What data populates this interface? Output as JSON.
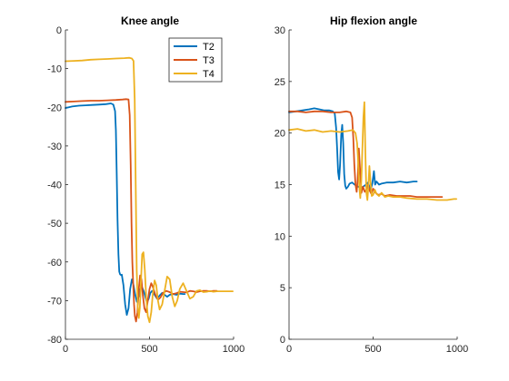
{
  "chart_data": [
    {
      "type": "line",
      "title": "Knee angle",
      "xlabel": "",
      "ylabel": "",
      "xlim": [
        0,
        1000
      ],
      "ylim": [
        -80,
        0
      ],
      "xticks": [
        0,
        500,
        1000
      ],
      "yticks": [
        -80,
        -70,
        -60,
        -50,
        -40,
        -30,
        -20,
        -10,
        0
      ],
      "grid": false,
      "legend": "top-right",
      "series": [
        {
          "name": "T2",
          "color": "#0072BD",
          "x": [
            0,
            40,
            80,
            120,
            160,
            200,
            240,
            270,
            285,
            295,
            300,
            305,
            310,
            315,
            320,
            325,
            330,
            335,
            345,
            355,
            365,
            375,
            385,
            395,
            405,
            415,
            425,
            435,
            445,
            455,
            465,
            475,
            485,
            495,
            505,
            515,
            530,
            545,
            560,
            575,
            590,
            605,
            620,
            640,
            660,
            680,
            700,
            710
          ],
          "y": [
            -20.2,
            -19.8,
            -19.6,
            -19.5,
            -19.4,
            -19.3,
            -19.2,
            -19.0,
            -19.3,
            -21,
            -26,
            -37,
            -49,
            -58,
            -62.5,
            -63.2,
            -63.4,
            -63.3,
            -66,
            -71,
            -73.7,
            -72,
            -67,
            -64.5,
            -66,
            -68.5,
            -70.3,
            -69,
            -67,
            -66.5,
            -67.5,
            -69,
            -70.5,
            -69.5,
            -68,
            -67.5,
            -68.5,
            -69.5,
            -68.7,
            -68,
            -68.5,
            -69,
            -68.5,
            -68.3,
            -68.5,
            -68.2,
            -68.3,
            -68.3
          ]
        },
        {
          "name": "T3",
          "color": "#D95319",
          "x": [
            0,
            50,
            100,
            150,
            200,
            250,
            300,
            340,
            360,
            375,
            382,
            388,
            393,
            398,
            403,
            408,
            413,
            420,
            428,
            436,
            444,
            452,
            460,
            470,
            480,
            490,
            500,
            510,
            520,
            535,
            550,
            565,
            580,
            600,
            620,
            640,
            660,
            680,
            700,
            720,
            740,
            760,
            780,
            800,
            820,
            840,
            860,
            880,
            900
          ],
          "y": [
            -18.6,
            -18.5,
            -18.4,
            -18.3,
            -18.3,
            -18.2,
            -18.1,
            -18.0,
            -17.9,
            -18.0,
            -22,
            -35,
            -50,
            -60,
            -66,
            -71,
            -74,
            -75.4,
            -73,
            -67,
            -63.5,
            -64.5,
            -68.5,
            -72,
            -73,
            -70,
            -67,
            -65.5,
            -66.5,
            -68.5,
            -69.8,
            -69.2,
            -68,
            -67.5,
            -67.8,
            -68.3,
            -68.1,
            -67.7,
            -67.8,
            -67.9,
            -67.5,
            -67.6,
            -67.8,
            -67.6,
            -67.5,
            -67.5,
            -67.6,
            -67.5,
            -67.5
          ]
        },
        {
          "name": "T4",
          "color": "#EDB120",
          "x": [
            0,
            50,
            100,
            150,
            200,
            250,
            300,
            350,
            380,
            395,
            405,
            412,
            418,
            424,
            430,
            436,
            442,
            448,
            456,
            464,
            472,
            480,
            490,
            500,
            510,
            520,
            530,
            540,
            550,
            560,
            575,
            590,
            605,
            620,
            635,
            650,
            665,
            680,
            700,
            720,
            740,
            760,
            780,
            800,
            820,
            840,
            860,
            880,
            900,
            920,
            940,
            960,
            980,
            995
          ],
          "y": [
            -8.1,
            -8.0,
            -7.9,
            -7.7,
            -7.6,
            -7.5,
            -7.4,
            -7.3,
            -7.2,
            -7.4,
            -8,
            -18,
            -40,
            -62,
            -71.5,
            -74.5,
            -72,
            -66,
            -58,
            -57.5,
            -62,
            -69,
            -74,
            -75.6,
            -73,
            -68,
            -64.8,
            -66,
            -70,
            -72.3,
            -71,
            -67.5,
            -63.8,
            -64.5,
            -69,
            -71.5,
            -70,
            -67,
            -65.5,
            -67.5,
            -69.5,
            -69,
            -67.5,
            -67.3,
            -67.8,
            -67.7,
            -67.5,
            -67.7,
            -67.6,
            -67.6,
            -67.6,
            -67.6,
            -67.6,
            -67.6
          ]
        }
      ]
    },
    {
      "type": "line",
      "title": "Hip flexion angle",
      "xlabel": "",
      "ylabel": "",
      "xlim": [
        0,
        1000
      ],
      "ylim": [
        0,
        30
      ],
      "xticks": [
        0,
        500,
        1000
      ],
      "yticks": [
        0,
        5,
        10,
        15,
        20,
        25,
        30
      ],
      "grid": false,
      "legend": "none",
      "series": [
        {
          "name": "T2",
          "color": "#0072BD",
          "x": [
            0,
            40,
            80,
            120,
            150,
            180,
            210,
            240,
            260,
            272,
            280,
            286,
            292,
            298,
            304,
            310,
            316,
            322,
            328,
            334,
            340,
            350,
            360,
            375,
            390,
            410,
            430,
            450,
            470,
            485,
            495,
            505,
            512,
            520,
            535,
            550,
            580,
            620,
            660,
            700,
            740,
            760
          ],
          "y": [
            22.0,
            22.1,
            22.2,
            22.3,
            22.4,
            22.3,
            22.2,
            22.2,
            22.1,
            21.9,
            20.5,
            18.5,
            16.2,
            15.5,
            17.0,
            19.8,
            20.8,
            19.0,
            16.0,
            14.9,
            14.6,
            14.8,
            15.1,
            15.2,
            15.0,
            14.8,
            14.7,
            14.9,
            15.2,
            14.5,
            15.1,
            16.3,
            15.0,
            15.3,
            15.0,
            15.1,
            15.2,
            15.2,
            15.3,
            15.2,
            15.3,
            15.3
          ]
        },
        {
          "name": "T3",
          "color": "#D95319",
          "x": [
            0,
            50,
            100,
            150,
            200,
            250,
            300,
            340,
            365,
            375,
            382,
            388,
            395,
            402,
            408,
            415,
            422,
            430,
            440,
            450,
            460,
            470,
            480,
            490,
            500,
            515,
            530,
            550,
            570,
            600,
            640,
            680,
            720,
            760,
            800,
            840,
            880,
            910
          ],
          "y": [
            22.1,
            22.1,
            22.0,
            22.1,
            22.1,
            22.0,
            22.0,
            22.1,
            22.0,
            21.5,
            19.5,
            17.0,
            15.0,
            14.3,
            15.5,
            18.5,
            16.5,
            14.2,
            14.8,
            14.3,
            14.5,
            15.0,
            14.4,
            14.1,
            14.6,
            14.2,
            14.0,
            14.1,
            13.9,
            14.0,
            13.9,
            13.9,
            13.9,
            13.8,
            13.8,
            13.8,
            13.8,
            13.8
          ]
        },
        {
          "name": "T4",
          "color": "#EDB120",
          "x": [
            0,
            50,
            100,
            150,
            200,
            250,
            300,
            350,
            380,
            395,
            405,
            412,
            418,
            424,
            430,
            436,
            442,
            448,
            454,
            460,
            466,
            472,
            478,
            484,
            492,
            500,
            510,
            520,
            535,
            550,
            570,
            590,
            620,
            660,
            700,
            760,
            820,
            880,
            940,
            980,
            995
          ],
          "y": [
            20.3,
            20.4,
            20.2,
            20.3,
            20.1,
            20.2,
            20.1,
            20.2,
            20.3,
            20.0,
            19.0,
            17.0,
            14.8,
            13.7,
            15.5,
            18.5,
            21.5,
            23.0,
            18.0,
            14.2,
            13.5,
            14.8,
            16.8,
            15.4,
            13.9,
            14.0,
            14.5,
            14.1,
            13.9,
            14.2,
            13.8,
            13.9,
            13.8,
            13.8,
            13.7,
            13.6,
            13.6,
            13.5,
            13.5,
            13.6,
            13.6
          ]
        }
      ]
    }
  ]
}
